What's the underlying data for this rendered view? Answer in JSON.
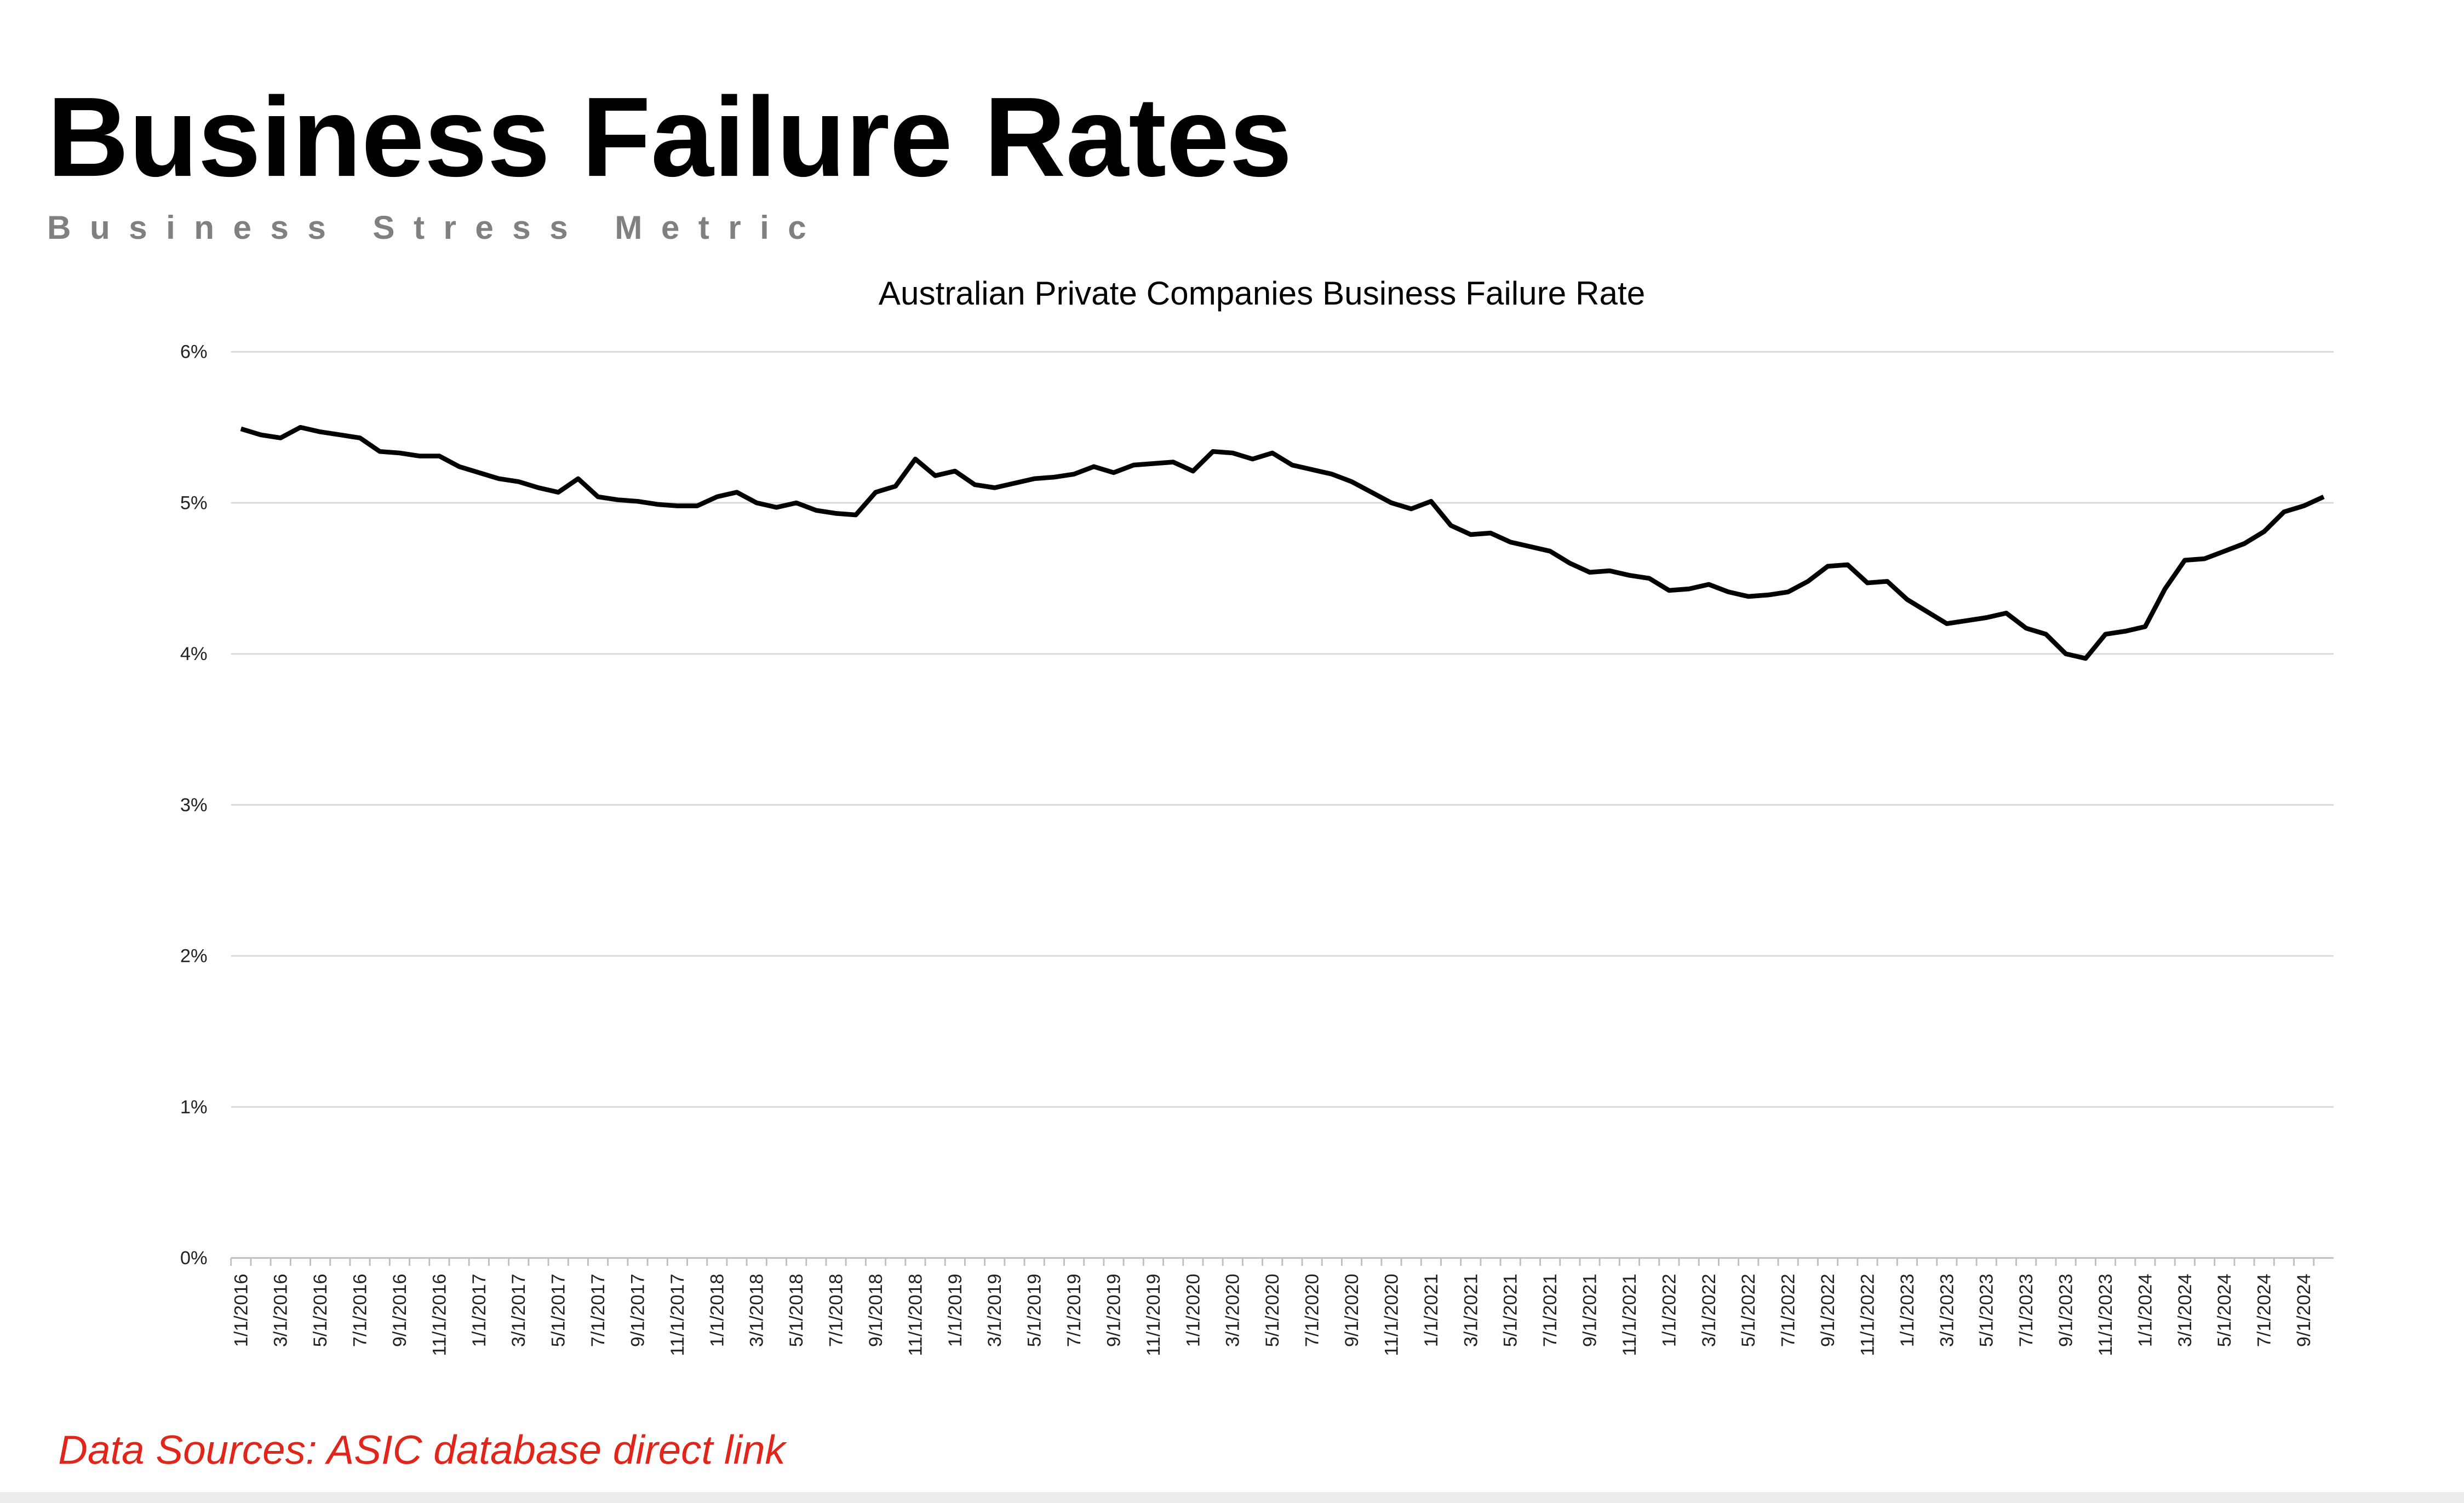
{
  "header": {
    "title": "Business Failure Rates",
    "subtitle": "Business Stress Metric"
  },
  "chart_data": {
    "type": "line",
    "title": "Australian Private Companies Business Failure Rate",
    "categories": [
      "1/1/2016",
      null,
      "3/1/2016",
      null,
      "5/1/2016",
      null,
      "7/1/2016",
      null,
      "9/1/2016",
      null,
      "11/1/2016",
      null,
      "1/1/2017",
      null,
      "3/1/2017",
      null,
      "5/1/2017",
      null,
      "7/1/2017",
      null,
      "9/1/2017",
      null,
      "11/1/2017",
      null,
      "1/1/2018",
      null,
      "3/1/2018",
      null,
      "5/1/2018",
      null,
      "7/1/2018",
      null,
      "9/1/2018",
      null,
      "11/1/2018",
      null,
      "1/1/2019",
      null,
      "3/1/2019",
      null,
      "5/1/2019",
      null,
      "7/1/2019",
      null,
      "9/1/2019",
      null,
      "11/1/2019",
      null,
      "1/1/2020",
      null,
      "3/1/2020",
      null,
      "5/1/2020",
      null,
      "7/1/2020",
      null,
      "9/1/2020",
      null,
      "11/1/2020",
      null,
      "1/1/2021",
      null,
      "3/1/2021",
      null,
      "5/1/2021",
      null,
      "7/1/2021",
      null,
      "9/1/2021",
      null,
      "11/1/2021",
      null,
      "1/1/2022",
      null,
      "3/1/2022",
      null,
      "5/1/2022",
      null,
      "7/1/2022",
      null,
      "9/1/2022",
      null,
      "11/1/2022",
      null,
      "1/1/2023",
      null,
      "3/1/2023",
      null,
      "5/1/2023",
      null,
      "7/1/2023",
      null,
      "9/1/2023",
      null,
      "11/1/2023",
      null,
      "1/1/2024",
      null,
      "3/1/2024",
      null,
      "5/1/2024",
      null,
      "7/1/2024",
      null,
      "9/1/2024",
      null
    ],
    "values": [
      5.49,
      5.45,
      5.43,
      5.5,
      5.47,
      5.45,
      5.43,
      5.34,
      5.33,
      5.31,
      5.31,
      5.24,
      5.2,
      5.16,
      5.14,
      5.1,
      5.07,
      5.16,
      5.04,
      5.02,
      5.01,
      4.99,
      4.98,
      4.98,
      5.04,
      5.07,
      5.0,
      4.97,
      5.0,
      4.95,
      4.93,
      4.92,
      5.07,
      5.11,
      5.29,
      5.18,
      5.21,
      5.12,
      5.1,
      5.13,
      5.16,
      5.17,
      5.19,
      5.24,
      5.2,
      5.25,
      5.26,
      5.27,
      5.21,
      5.34,
      5.33,
      5.29,
      5.33,
      5.25,
      5.22,
      5.19,
      5.14,
      5.07,
      5.0,
      4.96,
      5.01,
      4.85,
      4.79,
      4.8,
      4.74,
      4.71,
      4.68,
      4.6,
      4.54,
      4.55,
      4.52,
      4.5,
      4.42,
      4.43,
      4.46,
      4.41,
      4.38,
      4.39,
      4.41,
      4.48,
      4.58,
      4.59,
      4.47,
      4.48,
      4.36,
      4.28,
      4.2,
      4.22,
      4.24,
      4.27,
      4.17,
      4.13,
      4.0,
      3.97,
      4.13,
      4.15,
      4.18,
      4.43,
      4.62,
      4.63,
      4.68,
      4.73,
      4.81,
      4.94,
      4.98,
      5.04
    ],
    "color": "#000000",
    "ylim": [
      0,
      6
    ],
    "yticks": [
      {
        "value": 0,
        "label": "0%"
      },
      {
        "value": 1,
        "label": "1%"
      },
      {
        "value": 2,
        "label": "2%"
      },
      {
        "value": 3,
        "label": "3%"
      },
      {
        "value": 4,
        "label": "4%"
      },
      {
        "value": 5,
        "label": "5%"
      },
      {
        "value": 6,
        "label": "6%"
      }
    ],
    "grid": true
  },
  "footer": {
    "source": "Data Sources: ASIC database direct link"
  }
}
